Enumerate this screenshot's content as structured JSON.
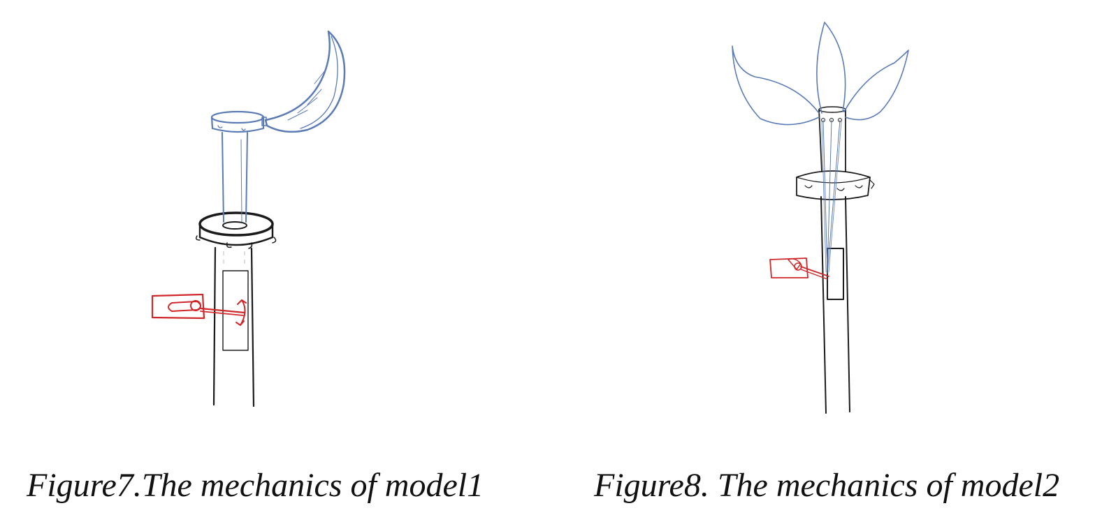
{
  "figures": [
    {
      "id": "figure7",
      "caption": "Figure7.The mechanics of model1"
    },
    {
      "id": "figure8",
      "caption": "Figure8. The mechanics of model2"
    }
  ],
  "colors": {
    "frame": "#1a1a1a",
    "linkage": "#5b7bb5",
    "servo": "#d0282a"
  },
  "icons": [
    "servo-motor-icon",
    "crescent-petal-icon",
    "three-petal-flower-icon"
  ]
}
